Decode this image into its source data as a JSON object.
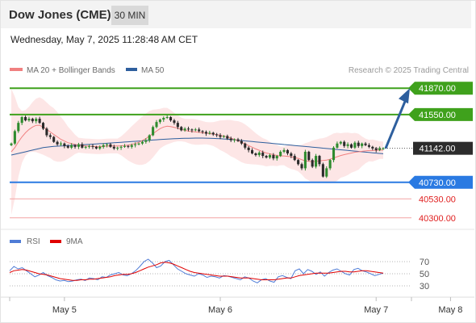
{
  "header": {
    "title": "Dow Jones (CME)",
    "timeframe": "30 MIN",
    "datetime": "Wednesday, May 7, 2025 11:28:48 AM CET"
  },
  "legend": {
    "items": [
      {
        "label": "MA 20 + Bollinger Bands",
        "color": "#f08080"
      },
      {
        "label": "MA 50",
        "color": "#2e5f9e"
      }
    ],
    "credit": "Research © 2025 Trading Central"
  },
  "rsi_legend": {
    "items": [
      {
        "label": "RSI",
        "color": "#4f7cd6"
      },
      {
        "label": "9MA",
        "color": "#e00000"
      }
    ]
  },
  "chart_data": {
    "type": "candlestick",
    "price_range": [
      40200,
      41960
    ],
    "levels": [
      {
        "value": 41870,
        "label": "41870.00",
        "kind": "resistance",
        "color": "#3fa11c"
      },
      {
        "value": 41550,
        "label": "41550.00",
        "kind": "resistance",
        "color": "#3fa11c"
      },
      {
        "value": 41142,
        "label": "41142.00",
        "kind": "last",
        "color": "#2c2c2c"
      },
      {
        "value": 40730,
        "label": "40730.00",
        "kind": "pivot",
        "color": "#2a7ae2"
      },
      {
        "value": 40530,
        "label": "40530.00",
        "kind": "support",
        "color": "#e02020"
      },
      {
        "value": 40300,
        "label": "40300.00",
        "kind": "support",
        "color": "#e02020"
      }
    ],
    "x_labels": [
      {
        "label": "May 5",
        "index": 15
      },
      {
        "label": "May 6",
        "index": 59
      },
      {
        "label": "May 7",
        "index": 103
      },
      {
        "label": "May 8",
        "index": 124
      }
    ],
    "closes": [
      41200,
      41350,
      41450,
      41520,
      41480,
      41500,
      41470,
      41500,
      41450,
      41380,
      41300,
      41280,
      41220,
      41190,
      41200,
      41170,
      41150,
      41180,
      41160,
      41190,
      41150,
      41160,
      41170,
      41160,
      41140,
      41160,
      41180,
      41190,
      41160,
      41140,
      41150,
      41160,
      41170,
      41160,
      41180,
      41190,
      41200,
      41220,
      41240,
      41300,
      41400,
      41460,
      41490,
      41510,
      41520,
      41480,
      41450,
      41400,
      41360,
      41380,
      41370,
      41360,
      41370,
      41350,
      41340,
      41320,
      41330,
      41310,
      41300,
      41280,
      41290,
      41260,
      41240,
      41250,
      41230,
      41200,
      41150,
      41120,
      41080,
      41060,
      41090,
      41050,
      41030,
      41060,
      41020,
      41050,
      41100,
      41120,
      41080,
      41050,
      41000,
      40950,
      40900,
      41100,
      41000,
      40920,
      41050,
      40950,
      40800,
      40900,
      41000,
      41150,
      41200,
      41220,
      41170,
      41190,
      41150,
      41210,
      41170,
      41200,
      41180,
      41160,
      41140,
      41120,
      41140,
      41142
    ],
    "ma20_approx": [
      41100,
      41150,
      41220,
      41280,
      41330,
      41370,
      41400,
      41420,
      41420,
      41400,
      41370,
      41340,
      41310,
      41280,
      41250,
      41230,
      41210,
      41200,
      41190,
      41180,
      41175,
      41170,
      41168,
      41165,
      41162,
      41162,
      41165,
      41168,
      41170,
      41170,
      41170,
      41172,
      41175,
      41180,
      41190,
      41200,
      41215,
      41235,
      41260,
      41290,
      41320,
      41350,
      41380,
      41400,
      41410,
      41405,
      41395,
      41385,
      41370,
      41360,
      41350,
      41345,
      41340,
      41335,
      41330,
      41325,
      41320,
      41315,
      41308,
      41300,
      41290,
      41280,
      41265,
      41250,
      41235,
      41215,
      41195,
      41175,
      41155,
      41135,
      41118,
      41100,
      41085,
      41075,
      41065,
      41055,
      41050,
      41050,
      41045,
      41040,
      41030,
      41020,
      41005,
      40990,
      40985,
      40980,
      40985,
      40990,
      40995,
      41000,
      41010,
      41025,
      41040,
      41055,
      41065,
      41075,
      41085,
      41095,
      41100,
      41105,
      41110,
      41115,
      41115,
      41118,
      41120,
      41120
    ],
    "ma50_approx": [
      41060,
      41070,
      41080,
      41090,
      41100,
      41110,
      41120,
      41130,
      41140,
      41150,
      41155,
      41160,
      41165,
      41168,
      41170,
      41172,
      41175,
      41178,
      41180,
      41182,
      41185,
      41188,
      41190,
      41192,
      41195,
      41198,
      41200,
      41203,
      41206,
      41209,
      41212,
      41215,
      41218,
      41221,
      41224,
      41227,
      41230,
      41233,
      41236,
      41239,
      41242,
      41245,
      41248,
      41251,
      41254,
      41256,
      41258,
      41260,
      41262,
      41263,
      41264,
      41265,
      41266,
      41266,
      41266,
      41265,
      41264,
      41262,
      41260,
      41258,
      41255,
      41252,
      41248,
      41244,
      41240,
      41236,
      41232,
      41228,
      41224,
      41220,
      41216,
      41212,
      41208,
      41204,
      41200,
      41196,
      41192,
      41188,
      41184,
      41180,
      41176,
      41172,
      41168,
      41164,
      41160,
      41156,
      41152,
      41148,
      41144,
      41140,
      41136,
      41132,
      41128,
      41124,
      41120,
      41116,
      41112,
      41108,
      41104,
      41100,
      41096,
      41092,
      41088,
      41084,
      41080,
      41076
    ],
    "projection": {
      "from": 41142,
      "to": 41870
    },
    "rsi": {
      "range": [
        10,
        90
      ],
      "levels": [
        70,
        50,
        30
      ],
      "rsi_values": [
        55,
        62,
        58,
        60,
        55,
        50,
        45,
        48,
        52,
        47,
        44,
        40,
        38,
        39,
        37,
        38,
        40,
        41,
        39,
        43,
        42,
        40,
        45,
        44,
        48,
        50,
        52,
        48,
        47,
        50,
        55,
        62,
        70,
        74,
        68,
        60,
        63,
        70,
        72,
        65,
        58,
        54,
        50,
        48,
        46,
        50,
        48,
        44,
        46,
        45,
        43,
        47,
        46,
        44,
        42,
        40,
        45,
        43,
        38,
        35,
        40,
        42,
        38,
        36,
        45,
        47,
        44,
        42,
        55,
        58,
        50,
        57,
        54,
        49,
        53,
        46,
        52,
        56,
        58,
        54,
        50,
        48,
        57,
        59,
        55,
        53,
        50,
        47,
        49,
        51
      ],
      "ma9_values": [
        52,
        55,
        56,
        57,
        56,
        54,
        52,
        50,
        49,
        48,
        46,
        44,
        42,
        41,
        40,
        39,
        39,
        40,
        40,
        41,
        41,
        42,
        43,
        44,
        45,
        47,
        48,
        49,
        49,
        50,
        52,
        55,
        58,
        61,
        63,
        65,
        68,
        69,
        68,
        66,
        63,
        60,
        57,
        54,
        52,
        51,
        50,
        49,
        48,
        47,
        46,
        46,
        46,
        45,
        44,
        43,
        43,
        43,
        42,
        41,
        40,
        40,
        40,
        40,
        41,
        42,
        43,
        43,
        45,
        47,
        48,
        49,
        50,
        51,
        51,
        51,
        51,
        52,
        53,
        54,
        54,
        53,
        53,
        54,
        55,
        55,
        54,
        53,
        52,
        51
      ]
    }
  }
}
